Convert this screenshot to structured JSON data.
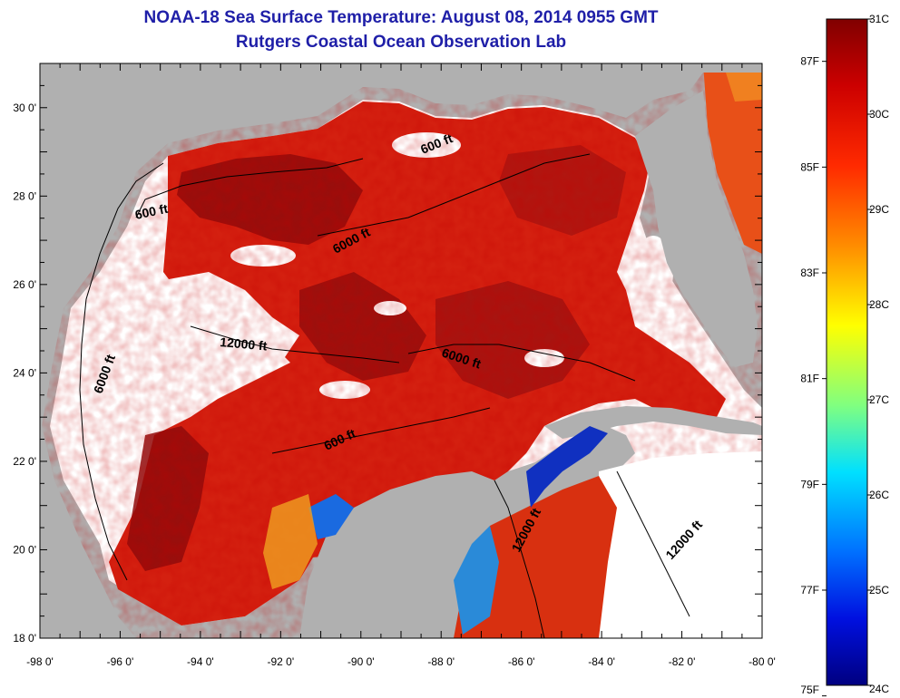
{
  "header": {
    "title": "NOAA-18 Sea Surface Temperature:  August 08, 2014 0955 GMT",
    "subtitle": "Rutgers Coastal Ocean Observation Lab"
  },
  "map": {
    "lon_range": [
      -98,
      -80
    ],
    "lat_range": [
      18,
      31
    ],
    "lon_ticks": [
      "-98 0'",
      "-96 0'",
      "-94 0'",
      "-92 0'",
      "-90 0'",
      "-88 0'",
      "-86 0'",
      "-84 0'",
      "-82 0'",
      "-80 0'"
    ],
    "lat_ticks": [
      "18 0'",
      "20 0'",
      "22 0'",
      "24 0'",
      "26 0'",
      "28 0'",
      "30 0'"
    ],
    "contour_labels": [
      "600 ft",
      "600 ft",
      "600 ft",
      "6000 ft",
      "6000 ft",
      "6000 ft",
      "12000 ft",
      "12000 ft",
      "12000 ft"
    ],
    "colors": {
      "land": "#b0b0b0",
      "no_data": "#ffffff",
      "warm": "#d42010",
      "hot": "#8a0a0a",
      "cool": "#1030c0"
    }
  },
  "colorbar": {
    "range_c": [
      24,
      31
    ],
    "celsius_labels": [
      "31C",
      "30C",
      "29C",
      "28C",
      "27C",
      "26C",
      "25C",
      "24C"
    ],
    "fahrenheit_labels": [
      "87F",
      "85F",
      "83F",
      "81F",
      "79F",
      "77F",
      "75F"
    ]
  }
}
